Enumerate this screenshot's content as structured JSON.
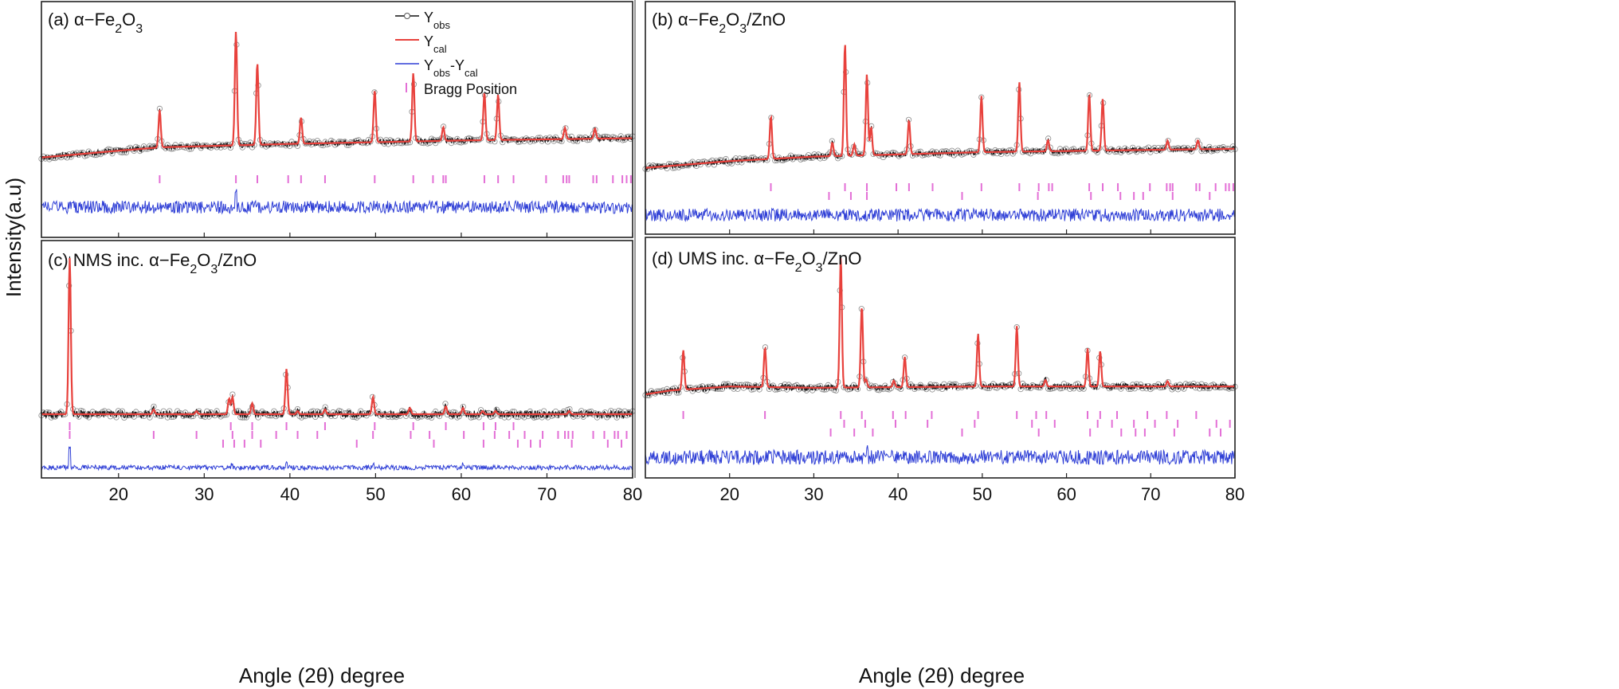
{
  "figure": {
    "ylabel": "Intensity(a.u)",
    "xlabel_left": "Angle (2θ) degree",
    "xlabel_right": "Angle (2θ) degree",
    "legend": [
      {
        "key": "yobs",
        "label": "Y",
        "sub": "obs",
        "color": "#111111"
      },
      {
        "key": "ycal",
        "label": "Y",
        "sub": "cal",
        "color": "#e8413c"
      },
      {
        "key": "diff",
        "label": "Y",
        "sub": "obs",
        "label2": "-Y",
        "sub2": "cal",
        "color": "#2f3fd6"
      },
      {
        "key": "bragg",
        "label": "Bragg Position",
        "color": "#e36fd6"
      }
    ],
    "colors": {
      "observed": "#111111",
      "observed_marker": "#8a8a8a",
      "calculated": "#e8413c",
      "difference": "#2f3fd6",
      "bragg": "#e36fd6",
      "frame": "#222222"
    }
  },
  "chart_data": [
    {
      "panel": "a",
      "type": "line",
      "title_prefix": "(a)  ",
      "title_parts": [
        [
          "α−Fe",
          ""
        ],
        [
          "2",
          "sub"
        ],
        [
          "O",
          ""
        ],
        [
          "3",
          "sub"
        ]
      ],
      "xlim": [
        11,
        80
      ],
      "xticks": [
        20,
        30,
        40,
        50,
        60,
        70,
        80
      ],
      "tick_labels": false,
      "background": [
        [
          11,
          0.1
        ],
        [
          20,
          0.16
        ],
        [
          25,
          0.19
        ],
        [
          40,
          0.22
        ],
        [
          60,
          0.25
        ],
        [
          80,
          0.27
        ]
      ],
      "peaks": [
        [
          24.8,
          0.33
        ],
        [
          33.7,
          1.0
        ],
        [
          36.2,
          0.72
        ],
        [
          41.3,
          0.23
        ],
        [
          49.9,
          0.46
        ],
        [
          54.4,
          0.6
        ],
        [
          57.9,
          0.12
        ],
        [
          62.7,
          0.42
        ],
        [
          64.3,
          0.4
        ],
        [
          72.1,
          0.1
        ],
        [
          75.6,
          0.09
        ]
      ],
      "bragg_rows": [
        [
          24.8,
          33.7,
          36.2,
          39.8,
          41.3,
          44.1,
          49.9,
          54.4,
          56.7,
          57.9,
          58.2,
          62.7,
          64.3,
          66.1,
          69.9,
          71.9,
          72.3,
          72.6,
          75.4,
          75.8,
          77.7,
          78.8,
          79.3,
          79.8
        ]
      ],
      "diff_spikes": [
        [
          33.7,
          0.5
        ]
      ],
      "main_range": [
        0,
        1.22
      ]
    },
    {
      "panel": "b",
      "type": "line",
      "title_prefix": "(b)   ",
      "title_parts": [
        [
          "α−Fe",
          ""
        ],
        [
          "2",
          "sub"
        ],
        [
          "O",
          ""
        ],
        [
          "3",
          "sub"
        ],
        [
          "/ZnO",
          ""
        ]
      ],
      "xlim": [
        10,
        80
      ],
      "xticks": [
        20,
        30,
        40,
        50,
        60,
        70,
        80
      ],
      "tick_labels": false,
      "background": [
        [
          10,
          0.08
        ],
        [
          20,
          0.14
        ],
        [
          30,
          0.18
        ],
        [
          50,
          0.22
        ],
        [
          80,
          0.25
        ]
      ],
      "peaks": [
        [
          24.9,
          0.38
        ],
        [
          32.2,
          0.12
        ],
        [
          33.7,
          1.0
        ],
        [
          34.8,
          0.1
        ],
        [
          36.3,
          0.72
        ],
        [
          36.8,
          0.25
        ],
        [
          41.3,
          0.3
        ],
        [
          49.9,
          0.5
        ],
        [
          54.4,
          0.62
        ],
        [
          57.8,
          0.1
        ],
        [
          62.7,
          0.5
        ],
        [
          64.3,
          0.46
        ],
        [
          72.0,
          0.08
        ],
        [
          75.6,
          0.08
        ]
      ],
      "bragg_rows": [
        [
          24.9,
          33.7,
          36.3,
          39.8,
          41.3,
          44.1,
          49.9,
          54.4,
          56.7,
          57.9,
          58.3,
          62.7,
          64.3,
          66.1,
          69.9,
          71.9,
          72.3,
          72.6,
          75.4,
          75.8,
          77.7,
          78.9,
          79.3,
          79.8
        ],
        [
          31.8,
          34.4,
          36.3,
          47.6,
          56.6,
          62.9,
          66.4,
          68.0,
          69.1,
          72.6,
          77.0
        ]
      ],
      "diff_spikes": [],
      "main_range": [
        0,
        1.22
      ]
    },
    {
      "panel": "c",
      "type": "line",
      "title_prefix": "(c)  NMS inc. ",
      "title_parts": [
        [
          "α−Fe",
          ""
        ],
        [
          "2",
          "sub"
        ],
        [
          "O",
          ""
        ],
        [
          "3",
          "sub"
        ],
        [
          "/ZnO",
          ""
        ]
      ],
      "xlim": [
        11,
        80
      ],
      "xticks": [
        20,
        30,
        40,
        50,
        60,
        70,
        80
      ],
      "tick_labels": true,
      "background": [
        [
          11,
          0.0
        ],
        [
          80,
          0.0
        ]
      ],
      "peaks": [
        [
          14.3,
          1.0
        ],
        [
          24.1,
          0.03
        ],
        [
          29.1,
          0.02
        ],
        [
          32.9,
          0.1
        ],
        [
          33.3,
          0.11
        ],
        [
          35.6,
          0.07
        ],
        [
          39.6,
          0.29
        ],
        [
          40.9,
          0.02
        ],
        [
          44.1,
          0.03
        ],
        [
          49.7,
          0.11
        ],
        [
          54.0,
          0.04
        ],
        [
          58.2,
          0.05
        ],
        [
          60.2,
          0.04
        ],
        [
          62.5,
          0.02
        ],
        [
          64.0,
          0.02
        ],
        [
          72.6,
          0.02
        ]
      ],
      "bragg_rows": [
        [
          14.3,
          33.1,
          35.6,
          39.6,
          44.1,
          49.9,
          54.4,
          58.2,
          62.6,
          64.0,
          66.1
        ],
        [
          14.3,
          24.1,
          29.1,
          33.3,
          35.6,
          38.4,
          40.9,
          43.2,
          49.7,
          54.1,
          56.3,
          60.3,
          63.9,
          65.6,
          67.4,
          69.5,
          71.3,
          72.1,
          72.5,
          73.0,
          75.4,
          76.7,
          77.9,
          78.3,
          79.3
        ],
        [
          32.2,
          33.5,
          34.7,
          36.6,
          47.8,
          56.8,
          62.6,
          66.6,
          68.1,
          69.2,
          72.9,
          77.1,
          78.7
        ]
      ],
      "diff_spikes": [
        [
          14.3,
          0.9
        ],
        [
          33.2,
          0.15
        ],
        [
          39.6,
          0.2
        ],
        [
          49.7,
          0.12
        ],
        [
          60.2,
          0.12
        ]
      ],
      "main_range": [
        0,
        1.02
      ]
    },
    {
      "panel": "d",
      "type": "line",
      "title_prefix": "(d)   UMS inc. ",
      "title_parts": [
        [
          "α−Fe",
          ""
        ],
        [
          "2",
          "sub"
        ],
        [
          "O",
          ""
        ],
        [
          "3",
          "sub"
        ],
        [
          "/ZnO",
          ""
        ]
      ],
      "xlim": [
        10,
        80
      ],
      "xticks": [
        20,
        30,
        40,
        50,
        60,
        70,
        80
      ],
      "tick_labels": true,
      "background": [
        [
          10,
          0.06
        ],
        [
          13,
          0.09
        ],
        [
          20,
          0.12
        ],
        [
          30,
          0.11
        ],
        [
          50,
          0.12
        ],
        [
          80,
          0.12
        ]
      ],
      "peaks": [
        [
          14.5,
          0.3
        ],
        [
          24.2,
          0.3
        ],
        [
          33.2,
          1.0
        ],
        [
          35.7,
          0.62
        ],
        [
          36.2,
          0.06
        ],
        [
          39.5,
          0.05
        ],
        [
          40.8,
          0.23
        ],
        [
          49.5,
          0.4
        ],
        [
          54.1,
          0.46
        ],
        [
          57.5,
          0.05
        ],
        [
          62.5,
          0.29
        ],
        [
          64.0,
          0.27
        ],
        [
          72.0,
          0.04
        ]
      ],
      "bragg_rows": [
        [
          14.5,
          24.2,
          33.2,
          35.7,
          39.4,
          40.9,
          44.0,
          49.5,
          54.1,
          56.4,
          57.6,
          62.5,
          64.0,
          66.0,
          69.6,
          71.9,
          75.4
        ],
        [
          33.6,
          36.1,
          39.7,
          43.5,
          49.1,
          55.9,
          58.6,
          63.7,
          65.4,
          68.0,
          70.5,
          73.2,
          77.8,
          79.4
        ],
        [
          32.0,
          34.8,
          37.0,
          47.6,
          56.7,
          62.8,
          66.5,
          68.2,
          69.3,
          72.8,
          77.0,
          78.3
        ]
      ],
      "diff_spikes": [
        [
          36.4,
          0.35
        ]
      ],
      "main_range": [
        0,
        1.0
      ]
    }
  ]
}
